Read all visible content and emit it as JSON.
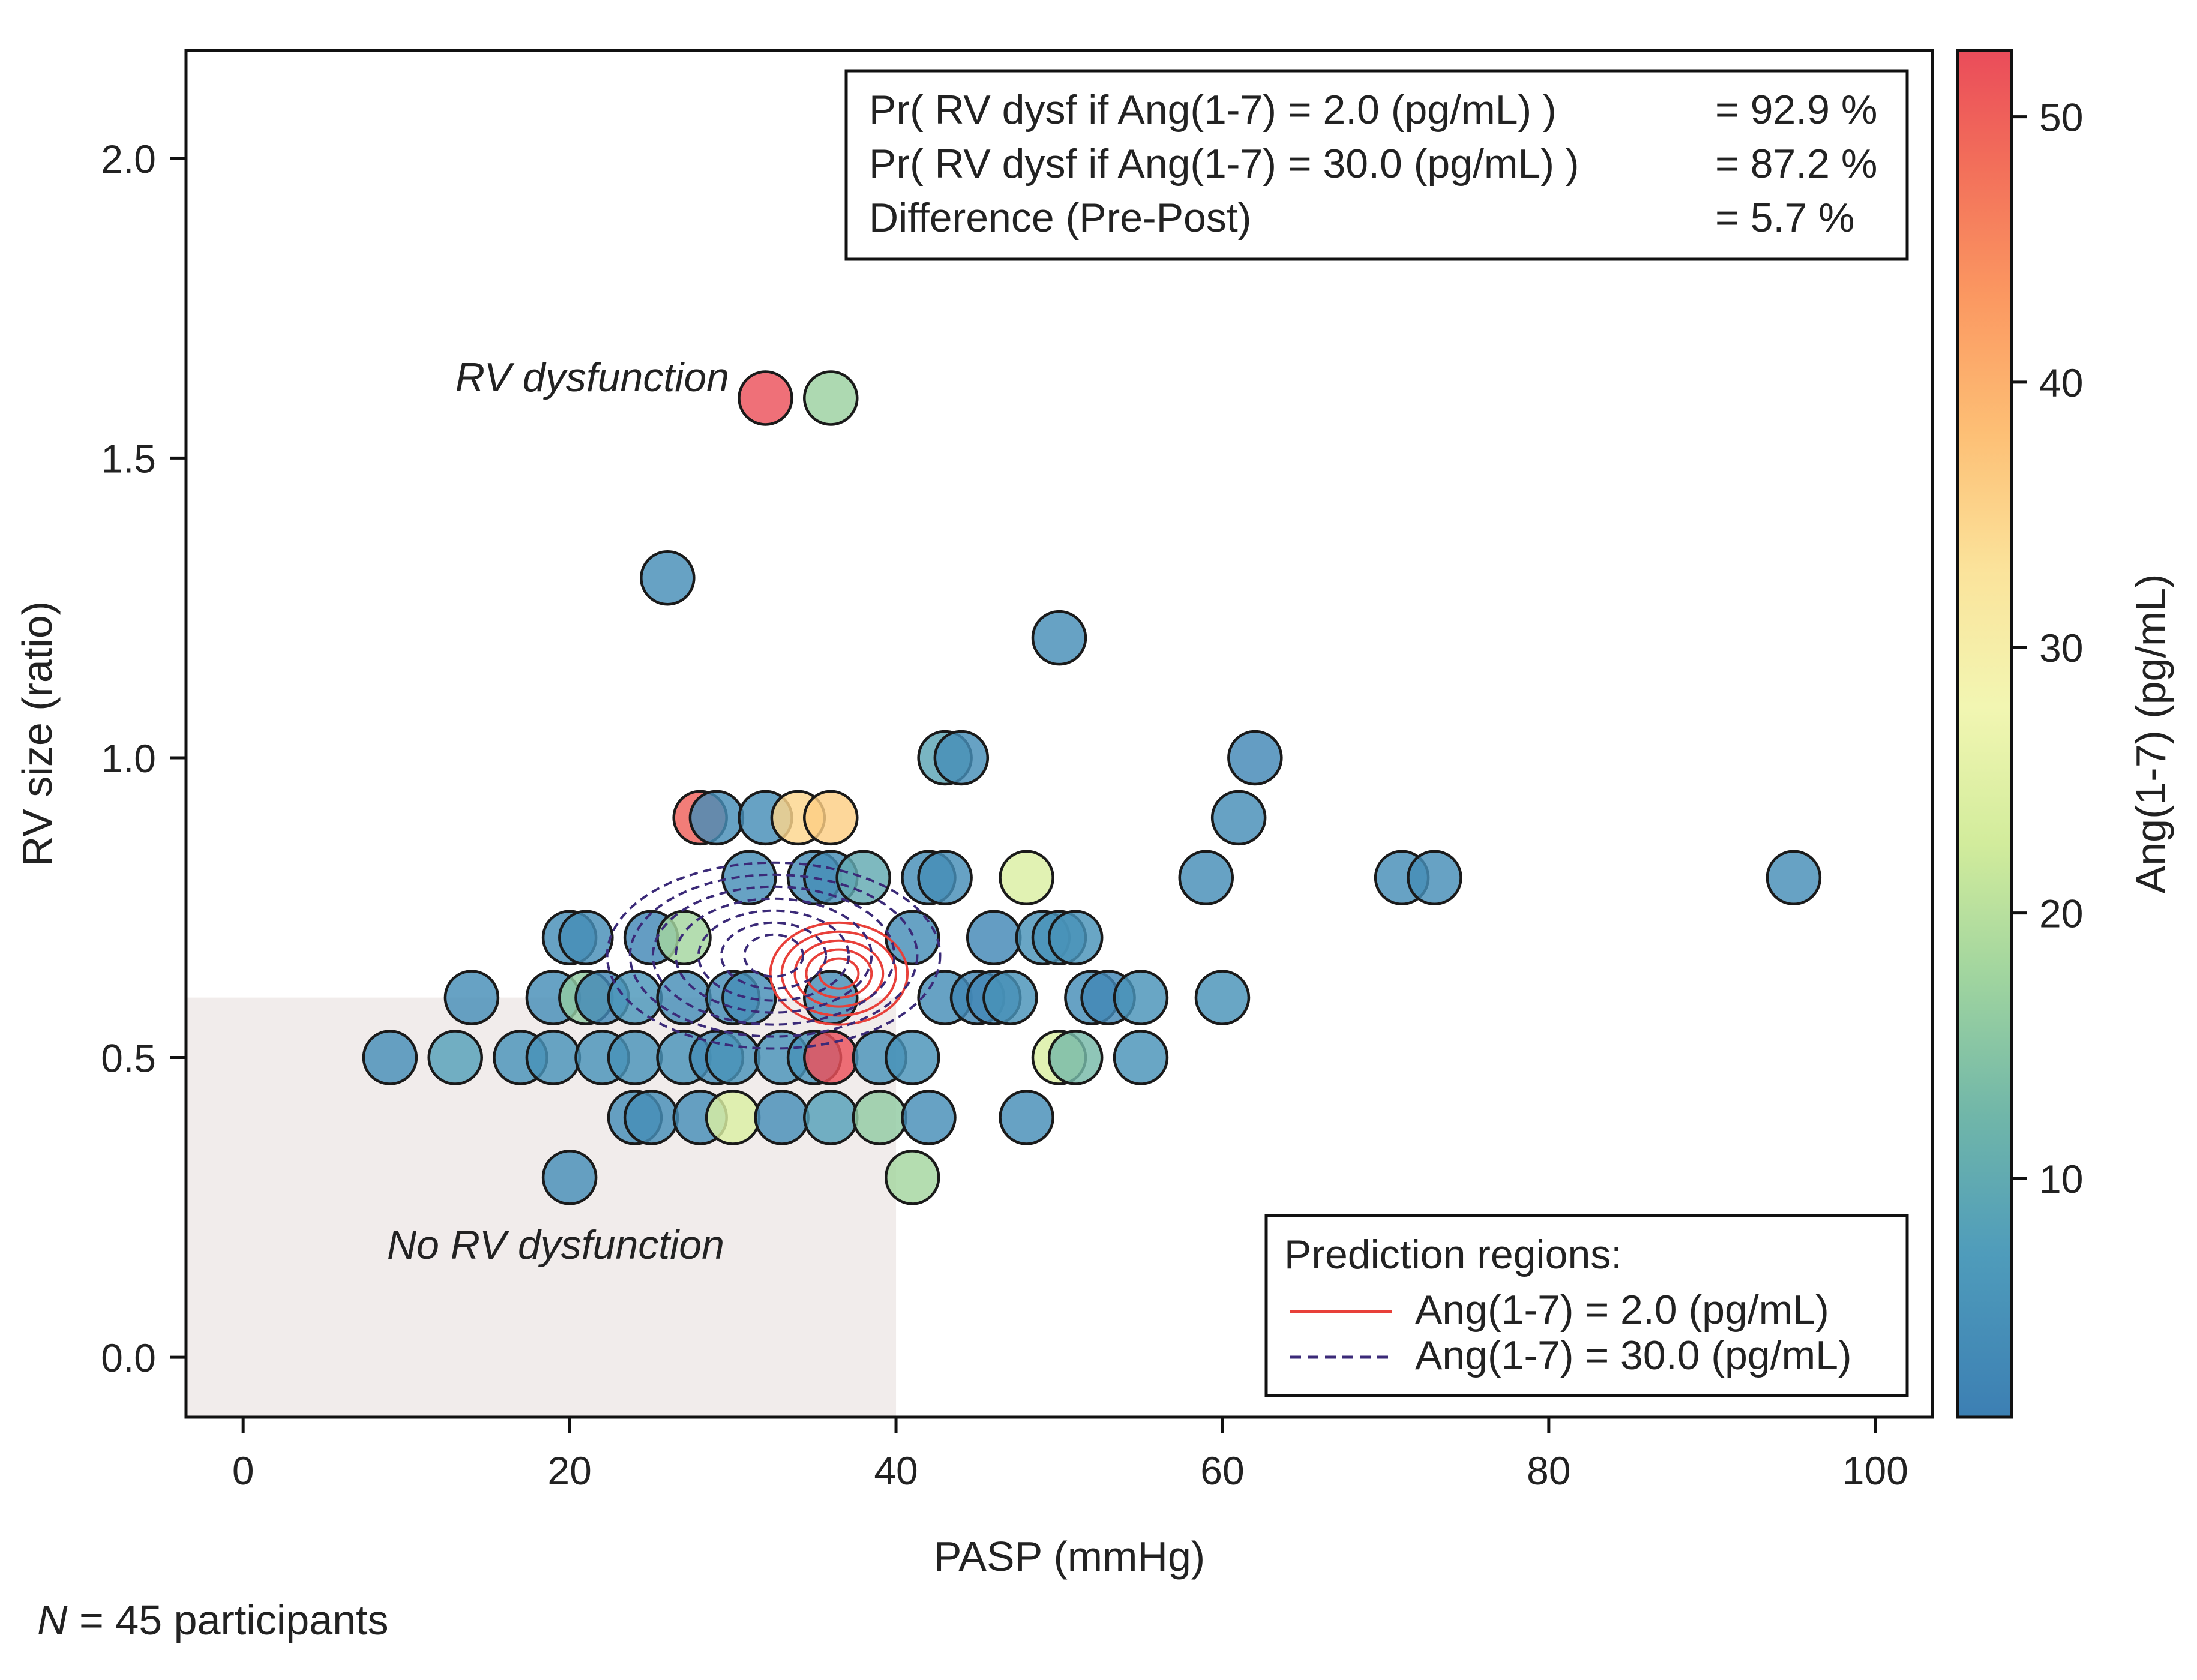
{
  "chart_data": {
    "type": "scatter",
    "xlabel": "PASP (mmHg)",
    "ylabel": "RV size (ratio)",
    "xlim": [
      -3.5,
      103.5
    ],
    "ylim": [
      -0.1,
      2.18
    ],
    "x_ticks": [
      0,
      20,
      40,
      60,
      80,
      100
    ],
    "x_tick_labels": [
      "0",
      "20",
      "40",
      "60",
      "80",
      "100"
    ],
    "y_ticks": [
      0.0,
      0.5,
      1.0,
      1.5,
      2.0
    ],
    "y_tick_labels": [
      "0.0",
      "0.5",
      "1.0",
      "1.5",
      "2.0"
    ],
    "colorbar": {
      "label": "Ang(1-7) (pg/mL)",
      "range": [
        1,
        52.5
      ],
      "ticks": [
        10,
        20,
        30,
        40,
        50
      ],
      "tick_labels": [
        "10",
        "20",
        "30",
        "40",
        "50"
      ],
      "colormap": "Spectral_r"
    },
    "shaded_region": {
      "x": [
        -3.5,
        40
      ],
      "y": [
        -0.1,
        0.6
      ],
      "color": "#f1eceb"
    },
    "annotations": {
      "dysfunction": "RV dysfunction",
      "no_dysfunction": "No RV dysfunction"
    },
    "stats_box": [
      {
        "label": "Pr( RV dysf if Ang(1-7) = 2.0 (pg/mL) )",
        "value": "= 92.9 %"
      },
      {
        "label": "Pr( RV dysf if Ang(1-7) = 30.0 (pg/mL) )",
        "value": "= 87.2 %"
      },
      {
        "label": "Difference (Pre-Post)",
        "value": "= 5.7 %"
      }
    ],
    "legend": {
      "title": "Prediction regions:",
      "position": "lower-right",
      "entries": [
        {
          "label": "Ang(1-7) = 2.0 (pg/mL)",
          "style": "solid",
          "color": "#e8403a"
        },
        {
          "label": "Ang(1-7) = 30.0 (pg/mL)",
          "style": "dashed",
          "color": "#3b2a78"
        }
      ]
    },
    "contours": [
      {
        "name": "Ang(1-7) = 2.0 (pg/mL)",
        "cx": 36.5,
        "cy": 0.64,
        "rx": [
          1.2,
          2.0,
          2.7,
          3.5,
          4.2
        ],
        "ry": [
          0.025,
          0.04,
          0.055,
          0.07,
          0.085
        ],
        "color": "#e8403a",
        "dashed": false
      },
      {
        "name": "Ang(1-7) = 30.0 (pg/mL)",
        "cx": 32.5,
        "cy": 0.67,
        "rx": [
          1.8,
          3.2,
          4.6,
          6.0,
          7.4,
          8.8,
          10.2
        ],
        "ry": [
          0.035,
          0.055,
          0.075,
          0.095,
          0.115,
          0.135,
          0.155
        ],
        "color": "#3b2a78",
        "dashed": true
      }
    ],
    "points": [
      {
        "x": 32,
        "y": 1.6,
        "c": 52
      },
      {
        "x": 36,
        "y": 1.6,
        "c": 17
      },
      {
        "x": 26,
        "y": 1.3,
        "c": 4
      },
      {
        "x": 50,
        "y": 1.2,
        "c": 4
      },
      {
        "x": 43,
        "y": 1.0,
        "c": 9
      },
      {
        "x": 44,
        "y": 1.0,
        "c": 4
      },
      {
        "x": 62,
        "y": 1.0,
        "c": 3
      },
      {
        "x": 28,
        "y": 0.9,
        "c": 50
      },
      {
        "x": 29,
        "y": 0.9,
        "c": 4
      },
      {
        "x": 32,
        "y": 0.9,
        "c": 4
      },
      {
        "x": 34,
        "y": 0.9,
        "c": 35
      },
      {
        "x": 36,
        "y": 0.9,
        "c": 36
      },
      {
        "x": 61,
        "y": 0.9,
        "c": 4
      },
      {
        "x": 31,
        "y": 0.8,
        "c": 4
      },
      {
        "x": 35,
        "y": 0.8,
        "c": 4
      },
      {
        "x": 36,
        "y": 0.8,
        "c": 4
      },
      {
        "x": 38,
        "y": 0.8,
        "c": 10
      },
      {
        "x": 42,
        "y": 0.8,
        "c": 4
      },
      {
        "x": 43,
        "y": 0.8,
        "c": 4
      },
      {
        "x": 48,
        "y": 0.8,
        "c": 24
      },
      {
        "x": 59,
        "y": 0.8,
        "c": 4
      },
      {
        "x": 71,
        "y": 0.8,
        "c": 4
      },
      {
        "x": 73,
        "y": 0.8,
        "c": 4
      },
      {
        "x": 95,
        "y": 0.8,
        "c": 4
      },
      {
        "x": 20,
        "y": 0.7,
        "c": 4
      },
      {
        "x": 21,
        "y": 0.7,
        "c": 4
      },
      {
        "x": 25,
        "y": 0.7,
        "c": 3
      },
      {
        "x": 27,
        "y": 0.7,
        "c": 18
      },
      {
        "x": 41,
        "y": 0.7,
        "c": 4
      },
      {
        "x": 46,
        "y": 0.7,
        "c": 3
      },
      {
        "x": 49,
        "y": 0.7,
        "c": 5
      },
      {
        "x": 50,
        "y": 0.7,
        "c": 5
      },
      {
        "x": 51,
        "y": 0.7,
        "c": 5
      },
      {
        "x": 14,
        "y": 0.6,
        "c": 4
      },
      {
        "x": 19,
        "y": 0.6,
        "c": 4
      },
      {
        "x": 21,
        "y": 0.6,
        "c": 16
      },
      {
        "x": 22,
        "y": 0.6,
        "c": 3
      },
      {
        "x": 24,
        "y": 0.6,
        "c": 6
      },
      {
        "x": 27,
        "y": 0.6,
        "c": 4
      },
      {
        "x": 30,
        "y": 0.6,
        "c": 4
      },
      {
        "x": 31,
        "y": 0.6,
        "c": 4
      },
      {
        "x": 36,
        "y": 0.6,
        "c": 4
      },
      {
        "x": 43,
        "y": 0.6,
        "c": 4
      },
      {
        "x": 45,
        "y": 0.6,
        "c": 3
      },
      {
        "x": 46,
        "y": 0.6,
        "c": 3
      },
      {
        "x": 47,
        "y": 0.6,
        "c": 5
      },
      {
        "x": 52,
        "y": 0.6,
        "c": 4
      },
      {
        "x": 53,
        "y": 0.6,
        "c": 3
      },
      {
        "x": 55,
        "y": 0.6,
        "c": 5
      },
      {
        "x": 60,
        "y": 0.6,
        "c": 5
      },
      {
        "x": 9,
        "y": 0.5,
        "c": 4
      },
      {
        "x": 13,
        "y": 0.5,
        "c": 8
      },
      {
        "x": 17,
        "y": 0.5,
        "c": 5
      },
      {
        "x": 19,
        "y": 0.5,
        "c": 5
      },
      {
        "x": 22,
        "y": 0.5,
        "c": 5
      },
      {
        "x": 24,
        "y": 0.5,
        "c": 5
      },
      {
        "x": 27,
        "y": 0.5,
        "c": 5
      },
      {
        "x": 29,
        "y": 0.5,
        "c": 4
      },
      {
        "x": 30,
        "y": 0.5,
        "c": 5
      },
      {
        "x": 33,
        "y": 0.5,
        "c": 5
      },
      {
        "x": 35,
        "y": 0.5,
        "c": 5
      },
      {
        "x": 36,
        "y": 0.5,
        "c": 52
      },
      {
        "x": 39,
        "y": 0.5,
        "c": 5
      },
      {
        "x": 41,
        "y": 0.5,
        "c": 5
      },
      {
        "x": 50,
        "y": 0.5,
        "c": 24
      },
      {
        "x": 51,
        "y": 0.5,
        "c": 13
      },
      {
        "x": 55,
        "y": 0.5,
        "c": 5
      },
      {
        "x": 24,
        "y": 0.4,
        "c": 4
      },
      {
        "x": 25,
        "y": 0.4,
        "c": 4
      },
      {
        "x": 28,
        "y": 0.4,
        "c": 4
      },
      {
        "x": 30,
        "y": 0.4,
        "c": 24
      },
      {
        "x": 33,
        "y": 0.4,
        "c": 4
      },
      {
        "x": 36,
        "y": 0.4,
        "c": 8
      },
      {
        "x": 39,
        "y": 0.4,
        "c": 16
      },
      {
        "x": 42,
        "y": 0.4,
        "c": 4
      },
      {
        "x": 48,
        "y": 0.4,
        "c": 4
      },
      {
        "x": 20,
        "y": 0.3,
        "c": 4
      },
      {
        "x": 41,
        "y": 0.3,
        "c": 18
      }
    ]
  },
  "footnote": {
    "n_symbol": "N",
    "text": " = 45 participants"
  }
}
